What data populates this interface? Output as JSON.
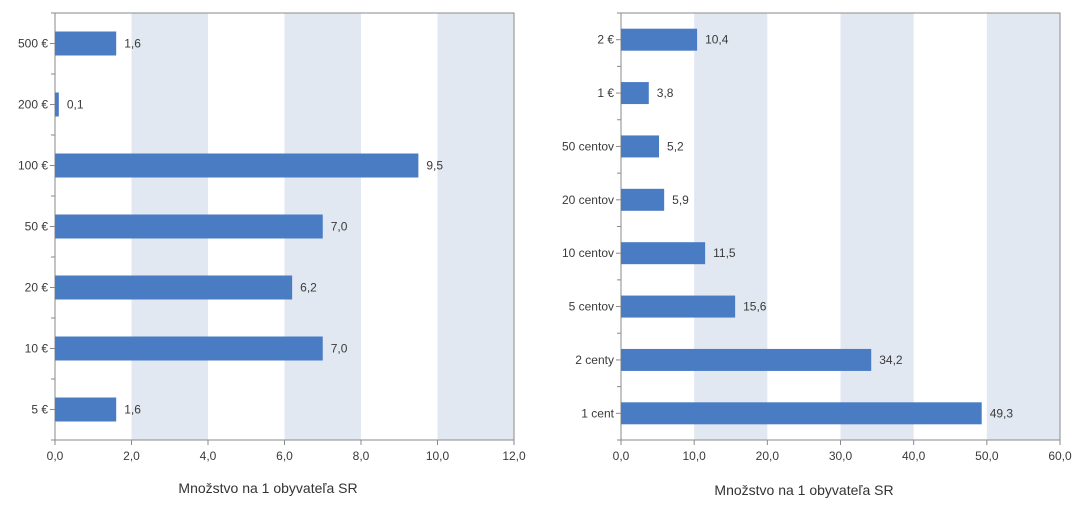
{
  "chart_data": [
    {
      "type": "bar",
      "orientation": "horizontal",
      "categories": [
        "500 €",
        "200 €",
        "100 €",
        "50 €",
        "20 €",
        "10 €",
        "5 €"
      ],
      "values": [
        1.6,
        0.1,
        9.5,
        7.0,
        6.2,
        7.0,
        1.6
      ],
      "value_labels": [
        "1,6",
        "0,1",
        "9,5",
        "7,0",
        "6,2",
        "7,0",
        "1,6"
      ],
      "xlabel": "Množstvo na 1 obyvateľa SR",
      "xlim": [
        0,
        12
      ],
      "xticks": [
        0,
        2,
        4,
        6,
        8,
        10,
        12
      ],
      "xtick_labels": [
        "0,0",
        "2,0",
        "4,0",
        "6,0",
        "8,0",
        "10,0",
        "12,0"
      ],
      "grid": "alternating vertical bands",
      "bar_color": "#4a7cc4",
      "band_color": "#e2e8f2"
    },
    {
      "type": "bar",
      "orientation": "horizontal",
      "categories": [
        "2 €",
        "1 €",
        "50 centov",
        "20 centov",
        "10 centov",
        "5 centov",
        "2 centy",
        "1 cent"
      ],
      "values": [
        10.4,
        3.8,
        5.2,
        5.9,
        11.5,
        15.6,
        34.2,
        49.3
      ],
      "value_labels": [
        "10,4",
        "3,8",
        "5,2",
        "5,9",
        "11,5",
        "15,6",
        "34,2",
        "49,3"
      ],
      "xlabel": "Množstvo na 1 obyvateľa SR",
      "xlim": [
        0,
        60
      ],
      "xticks": [
        0,
        10,
        20,
        30,
        40,
        50,
        60
      ],
      "xtick_labels": [
        "0,0",
        "10,0",
        "20,0",
        "30,0",
        "40,0",
        "50,0",
        "60,0"
      ],
      "grid": "alternating vertical bands",
      "bar_color": "#4a7cc4",
      "band_color": "#e2e8f2"
    }
  ]
}
